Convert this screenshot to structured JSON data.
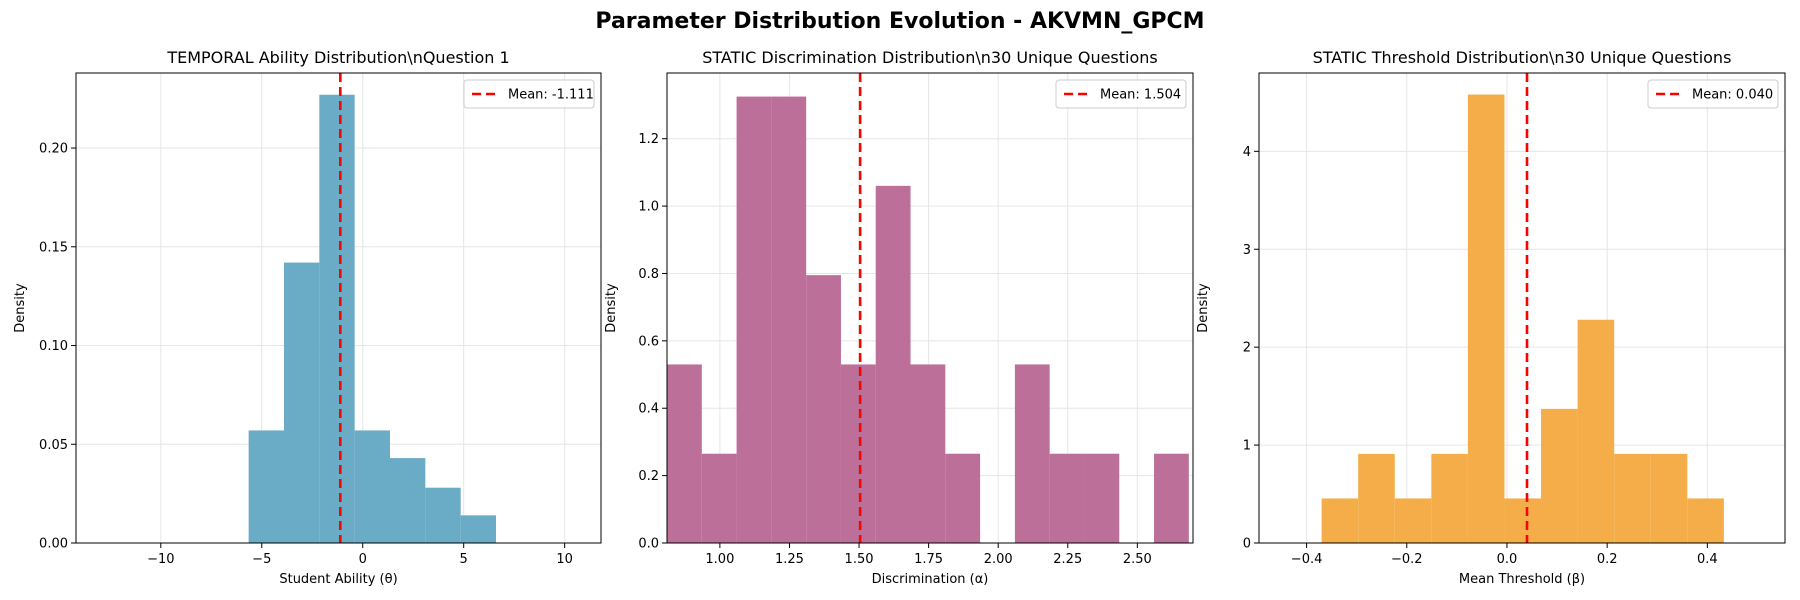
{
  "figure_title": "Parameter Distribution Evolution - AKVMN_GPCM",
  "mean_line_color": "#ff0000",
  "chart_data": [
    {
      "type": "bar",
      "title": "TEMPORAL Ability Distribution\\nQuestion 1",
      "xlabel": "Student Ability (θ)",
      "ylabel": "Density",
      "xlim": [
        -14.2,
        11.8
      ],
      "ylim": [
        0,
        0.238
      ],
      "grid": true,
      "color": "#6aabc6",
      "xticks": [
        -10,
        -5,
        0,
        5,
        10
      ],
      "xtick_labels": [
        "−10",
        "−5",
        "0",
        "5",
        "10"
      ],
      "yticks": [
        0.0,
        0.05,
        0.1,
        0.15,
        0.2
      ],
      "ytick_labels": [
        "0.00",
        "0.05",
        "0.10",
        "0.15",
        "0.20"
      ],
      "bins": [
        {
          "x0": -5.65,
          "x1": -3.9,
          "value": 0.057
        },
        {
          "x0": -3.9,
          "x1": -2.15,
          "value": 0.142
        },
        {
          "x0": -2.15,
          "x1": -0.4,
          "value": 0.227
        },
        {
          "x0": -0.4,
          "x1": 1.35,
          "value": 0.057
        },
        {
          "x0": 1.35,
          "x1": 3.1,
          "value": 0.043
        },
        {
          "x0": 3.1,
          "x1": 4.85,
          "value": 0.028
        },
        {
          "x0": 4.85,
          "x1": 6.6,
          "value": 0.014
        }
      ],
      "mean": -1.111,
      "legend_label": "Mean: -1.111",
      "legend_position": "top-right"
    },
    {
      "type": "bar",
      "title": "STATIC Discrimination Distribution\\n30 Unique Questions",
      "xlabel": "Discrimination (α)",
      "ylabel": "Density",
      "xlim": [
        0.81,
        2.7
      ],
      "ylim": [
        0,
        1.395
      ],
      "grid": true,
      "color": "#bb6f99",
      "xticks": [
        1.0,
        1.25,
        1.5,
        1.75,
        2.0,
        2.25,
        2.5
      ],
      "xtick_labels": [
        "1.00",
        "1.25",
        "1.50",
        "1.75",
        "2.00",
        "2.25",
        "2.50"
      ],
      "yticks": [
        0.0,
        0.2,
        0.4,
        0.6,
        0.8,
        1.0,
        1.2
      ],
      "ytick_labels": [
        "0.0",
        "0.2",
        "0.4",
        "0.6",
        "0.8",
        "1.0",
        "1.2"
      ],
      "bins": [
        {
          "x0": 0.81,
          "x1": 0.935,
          "value": 0.53
        },
        {
          "x0": 0.935,
          "x1": 1.06,
          "value": 0.265
        },
        {
          "x0": 1.06,
          "x1": 1.185,
          "value": 1.325
        },
        {
          "x0": 1.185,
          "x1": 1.31,
          "value": 1.325
        },
        {
          "x0": 1.31,
          "x1": 1.435,
          "value": 0.795
        },
        {
          "x0": 1.435,
          "x1": 1.56,
          "value": 0.53
        },
        {
          "x0": 1.56,
          "x1": 1.685,
          "value": 1.06
        },
        {
          "x0": 1.685,
          "x1": 1.81,
          "value": 0.53
        },
        {
          "x0": 1.81,
          "x1": 1.935,
          "value": 0.265
        },
        {
          "x0": 1.935,
          "x1": 2.06,
          "value": 0
        },
        {
          "x0": 2.06,
          "x1": 2.185,
          "value": 0.53
        },
        {
          "x0": 2.185,
          "x1": 2.31,
          "value": 0.265
        },
        {
          "x0": 2.31,
          "x1": 2.435,
          "value": 0.265
        },
        {
          "x0": 2.435,
          "x1": 2.56,
          "value": 0
        },
        {
          "x0": 2.56,
          "x1": 2.685,
          "value": 0.265
        }
      ],
      "mean": 1.504,
      "legend_label": "Mean: 1.504",
      "legend_position": "top-right"
    },
    {
      "type": "bar",
      "title": "STATIC Threshold Distribution\\n30 Unique Questions",
      "xlabel": "Mean Threshold (β)",
      "ylabel": "Density",
      "xlim": [
        -0.495,
        0.555
      ],
      "ylim": [
        0,
        4.8
      ],
      "grid": true,
      "color": "#f4ad48",
      "xticks": [
        -0.4,
        -0.2,
        0.0,
        0.2,
        0.4
      ],
      "xtick_labels": [
        "−0.4",
        "−0.2",
        "0.0",
        "0.2",
        "0.4"
      ],
      "yticks": [
        0,
        1,
        2,
        3,
        4
      ],
      "ytick_labels": [
        "0",
        "1",
        "2",
        "3",
        "4"
      ],
      "bins": [
        {
          "x0": -0.37,
          "x1": -0.297,
          "value": 0.455
        },
        {
          "x0": -0.297,
          "x1": -0.224,
          "value": 0.91
        },
        {
          "x0": -0.224,
          "x1": -0.151,
          "value": 0.455
        },
        {
          "x0": -0.151,
          "x1": -0.078,
          "value": 0.91
        },
        {
          "x0": -0.078,
          "x1": -0.005,
          "value": 4.58
        },
        {
          "x0": -0.005,
          "x1": 0.068,
          "value": 0.455
        },
        {
          "x0": 0.068,
          "x1": 0.141,
          "value": 1.37
        },
        {
          "x0": 0.141,
          "x1": 0.214,
          "value": 2.28
        },
        {
          "x0": 0.214,
          "x1": 0.287,
          "value": 0.91
        },
        {
          "x0": 0.287,
          "x1": 0.36,
          "value": 0.91
        },
        {
          "x0": 0.36,
          "x1": 0.433,
          "value": 0.455
        }
      ],
      "mean": 0.04,
      "legend_label": "Mean: 0.040",
      "legend_position": "top-right"
    }
  ]
}
